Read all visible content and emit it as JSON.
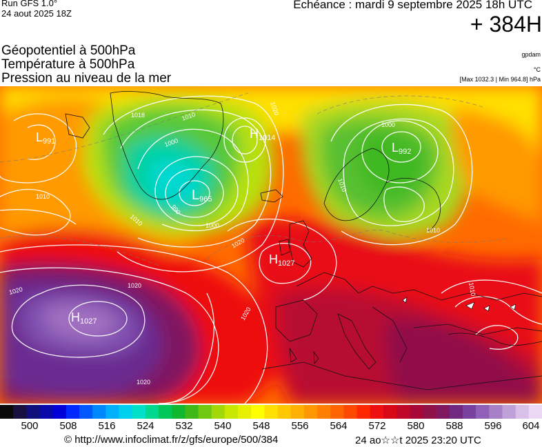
{
  "header": {
    "run": "Run GFS 1.0°",
    "run_date": "24 aout 2025 18Z",
    "echeance": "Echéance : mardi 9 septembre 2025 18h UTC",
    "lead": "+ 384H",
    "param1": "Géopotentiel à 500hPa",
    "param2": "Température à 500hPa",
    "param3": "Pression au niveau de la mer",
    "unit1": "gpdam",
    "unit2": "°C",
    "maxmin": "[Max 1032.3 | Min 964.8] hPa"
  },
  "systems": [
    {
      "type": "L",
      "value": "991"
    },
    {
      "type": "L",
      "value": "965"
    },
    {
      "type": "H",
      "value": "1014"
    },
    {
      "type": "L",
      "value": "992"
    },
    {
      "type": "H",
      "value": "1027"
    },
    {
      "type": "H",
      "value": "1027"
    }
  ],
  "contour_labels": [
    "1010",
    "1000",
    "990",
    "1020",
    "1010",
    "1000",
    "1020",
    "1020",
    "1020",
    "1010",
    "1010",
    "1000",
    "1020",
    "1010",
    "1010",
    "1020",
    "1018"
  ],
  "colorbar": {
    "ticks": [
      "500",
      "508",
      "516",
      "524",
      "532",
      "540",
      "548",
      "556",
      "564",
      "572",
      "580",
      "588",
      "596",
      "604"
    ],
    "colors": [
      "#0a0a0a",
      "#1a1040",
      "#10107a",
      "#0a0aaa",
      "#0000d8",
      "#0028ff",
      "#0058ff",
      "#0088ff",
      "#00b0ff",
      "#00d0f0",
      "#00e0c8",
      "#00d890",
      "#00c858",
      "#10b830",
      "#40b818",
      "#70c810",
      "#a0d808",
      "#c8e800",
      "#e8f000",
      "#ffff00",
      "#ffe000",
      "#ffc800",
      "#ffb000",
      "#ff9800",
      "#ff8000",
      "#ff6400",
      "#ff4800",
      "#ff2800",
      "#ee1010",
      "#d80818",
      "#c00828",
      "#a80838",
      "#901048",
      "#801860",
      "#702880",
      "#7a40a0",
      "#9060b8",
      "#a880c8",
      "#c0a0d8",
      "#d8c0e8",
      "#ead8f4"
    ]
  },
  "footer": {
    "credit": "© http://www.infoclimat.fr/z/gfs/europe/500/384",
    "timestamp": "24 ao☆☆t 2025 23:20 UTC"
  }
}
